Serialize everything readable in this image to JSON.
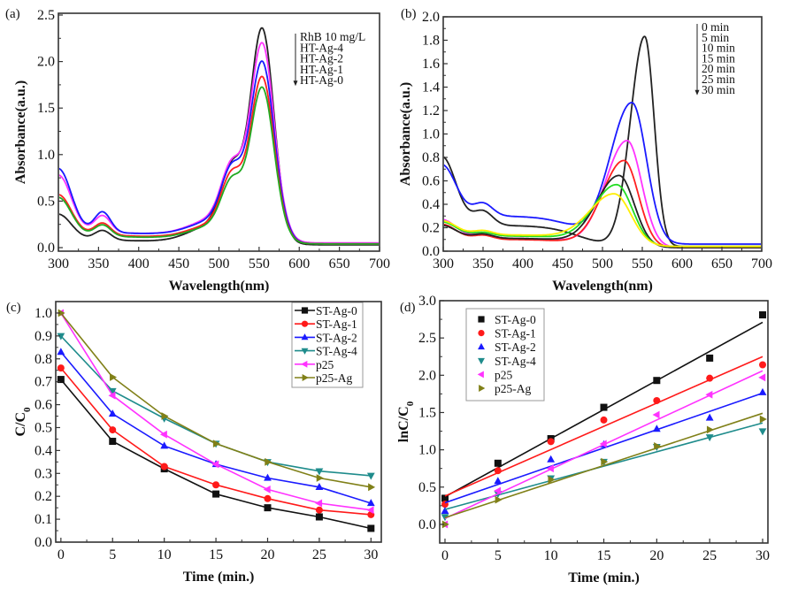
{
  "chart_data": [
    {
      "id": "a",
      "type": "line",
      "panel_label": "(a)",
      "title": "",
      "xlabel": "Wavelength(nm)",
      "ylabel": "Absorbance(a.u.)",
      "xlim": [
        300,
        700
      ],
      "ylim": [
        0,
        2.5
      ],
      "xticks": [
        300,
        350,
        400,
        450,
        500,
        550,
        600,
        650,
        700
      ],
      "yticks": [
        0.0,
        0.5,
        1.0,
        1.5,
        2.0,
        2.5
      ],
      "ytick_labels": [
        "0.0",
        "0.5",
        "1.0",
        "1.5",
        "2.0",
        "2.5"
      ],
      "grid": false,
      "legend": {
        "placement": "top-right",
        "style": "arrow-list",
        "entries": [
          "RhB 10 mg/L",
          "HT-Ag-4",
          "HT-Ag-2",
          "HT-Ag-1",
          "HT-Ag-0"
        ]
      },
      "series": [
        {
          "name": "RhB 10 mg/L",
          "color": "#222222",
          "peak": 2.21,
          "shoulder": 0.8,
          "uv305": 0.32,
          "uv355": 0.2,
          "trough450": 0.06,
          "tail": 0.03
        },
        {
          "name": "HT-Ag-4",
          "color": "#ff33ff",
          "peak": 1.98,
          "shoulder": 0.75,
          "uv305": 0.74,
          "uv355": 0.36,
          "trough450": 0.14,
          "tail": 0.05
        },
        {
          "name": "HT-Ag-2",
          "color": "#1a1aff",
          "peak": 1.79,
          "shoulder": 0.72,
          "uv305": 0.81,
          "uv355": 0.4,
          "trough450": 0.14,
          "tail": 0.04
        },
        {
          "name": "HT-Ag-1",
          "color": "#ff2020",
          "peak": 1.66,
          "shoulder": 0.68,
          "uv305": 0.53,
          "uv355": 0.28,
          "trough450": 0.11,
          "tail": 0.04
        },
        {
          "name": "HT-Ag-0",
          "color": "#22aa22",
          "peak": 1.56,
          "shoulder": 0.62,
          "uv305": 0.5,
          "uv355": 0.26,
          "trough450": 0.1,
          "tail": 0.04
        }
      ]
    },
    {
      "id": "b",
      "type": "line",
      "panel_label": "(b)",
      "title": "",
      "xlabel": "Wavelength(nm)",
      "ylabel": "Absorbance(a.u.)",
      "xlim": [
        300,
        700
      ],
      "ylim": [
        0,
        2.0
      ],
      "xticks": [
        300,
        350,
        400,
        450,
        500,
        550,
        600,
        650,
        700
      ],
      "yticks": [
        0.0,
        0.2,
        0.4,
        0.6,
        0.8,
        1.0,
        1.2,
        1.4,
        1.6,
        1.8,
        2.0
      ],
      "ytick_labels": [
        "0.0",
        "0.2",
        "0.4",
        "0.6",
        "0.8",
        "1.0",
        "1.2",
        "1.4",
        "1.6",
        "1.8",
        "2.0"
      ],
      "grid": false,
      "legend": {
        "placement": "top-right",
        "style": "arrow-list",
        "entries": [
          "0 min",
          "5 min",
          "10 min",
          "15 min",
          "20 min",
          "25 min",
          "30 min"
        ]
      },
      "series": [
        {
          "name": "0 min",
          "color": "#222222",
          "peak_x": 553,
          "peak": 1.79,
          "width": 17,
          "uv305": 0.81,
          "uv355": 0.42,
          "base400": 0.22,
          "tail": 0.04
        },
        {
          "name": "5 min",
          "color": "#1a1aff",
          "peak_x": 537,
          "peak": 1.2,
          "width": 26,
          "uv305": 0.74,
          "uv355": 0.48,
          "base400": 0.3,
          "tail": 0.06
        },
        {
          "name": "10 min",
          "color": "#ff33ff",
          "peak_x": 531,
          "peak": 0.91,
          "width": 26,
          "uv305": 0.27,
          "uv355": 0.17,
          "base400": 0.11,
          "tail": 0.03
        },
        {
          "name": "15 min",
          "color": "#ff2020",
          "peak_x": 527,
          "peak": 0.74,
          "width": 26,
          "uv305": 0.23,
          "uv355": 0.16,
          "base400": 0.1,
          "tail": 0.03
        },
        {
          "name": "20 min",
          "color": "#222222",
          "peak_x": 521,
          "peak": 0.61,
          "width": 27,
          "uv305": 0.22,
          "uv355": 0.17,
          "base400": 0.11,
          "tail": 0.03
        },
        {
          "name": "25 min",
          "color": "#22dd22",
          "peak_x": 518,
          "peak": 0.52,
          "width": 28,
          "uv305": 0.25,
          "uv355": 0.18,
          "base400": 0.13,
          "tail": 0.04
        },
        {
          "name": "30 min",
          "color": "#ffee00",
          "peak_x": 515,
          "peak": 0.44,
          "width": 30,
          "uv305": 0.26,
          "uv355": 0.2,
          "base400": 0.14,
          "tail": 0.04
        }
      ]
    },
    {
      "id": "c",
      "type": "line",
      "panel_label": "(c)",
      "title": "",
      "xlabel": "Time (min.)",
      "ylabel": "C/C0",
      "ylabel_main": "C/C",
      "ylabel_sub": "0",
      "xlim": [
        -0.5,
        31
      ],
      "ylim": [
        0,
        1.05
      ],
      "xticks": [
        0,
        5,
        10,
        15,
        20,
        25,
        30
      ],
      "yticks": [
        0.0,
        0.1,
        0.2,
        0.3,
        0.4,
        0.5,
        0.6,
        0.7,
        0.8,
        0.9,
        1.0
      ],
      "ytick_labels": [
        "0.0",
        "0.1",
        "0.2",
        "0.3",
        "0.4",
        "0.5",
        "0.6",
        "0.7",
        "0.8",
        "0.9",
        "1.0"
      ],
      "grid": false,
      "legend": {
        "placement": "top-right"
      },
      "x": [
        0,
        5,
        10,
        15,
        20,
        25,
        30
      ],
      "series": [
        {
          "name": "ST-Ag-0",
          "color": "#111111",
          "marker": "square",
          "values": [
            0.71,
            0.44,
            0.32,
            0.21,
            0.15,
            0.11,
            0.06
          ]
        },
        {
          "name": "ST-Ag-1",
          "color": "#ff1a1a",
          "marker": "circle",
          "values": [
            0.76,
            0.49,
            0.33,
            0.25,
            0.19,
            0.14,
            0.12
          ]
        },
        {
          "name": "ST-Ag-2",
          "color": "#1a1aff",
          "marker": "triangle-up",
          "values": [
            0.83,
            0.56,
            0.42,
            0.34,
            0.28,
            0.24,
            0.17
          ]
        },
        {
          "name": "ST-Ag-4",
          "color": "#1f8c8c",
          "marker": "triangle-down",
          "values": [
            0.9,
            0.66,
            0.54,
            0.43,
            0.35,
            0.31,
            0.29
          ]
        },
        {
          "name": "p25",
          "color": "#ff33ff",
          "marker": "triangle-left",
          "values": [
            1.0,
            0.64,
            0.47,
            0.34,
            0.23,
            0.17,
            0.14
          ]
        },
        {
          "name": "p25-Ag",
          "color": "#808018",
          "marker": "triangle-right",
          "values": [
            1.0,
            0.72,
            0.55,
            0.43,
            0.35,
            0.28,
            0.24
          ]
        }
      ]
    },
    {
      "id": "d",
      "type": "scatter",
      "panel_label": "(d)",
      "title": "",
      "xlabel": "Time (min.)",
      "ylabel": "lnC/C0",
      "ylabel_main": "lnC/C",
      "ylabel_sub": "0",
      "xlim": [
        -0.5,
        30.5
      ],
      "ylim": [
        -0.25,
        3.0
      ],
      "xticks": [
        0,
        5,
        10,
        15,
        20,
        25,
        30
      ],
      "yticks": [
        0.0,
        0.5,
        1.0,
        1.5,
        2.0,
        2.5,
        3.0
      ],
      "ytick_labels": [
        "0.0",
        "0.5",
        "1.0",
        "1.5",
        "2.0",
        "2.5",
        "3.0"
      ],
      "grid": false,
      "legend": {
        "placement": "top-left"
      },
      "x": [
        0,
        5,
        10,
        15,
        20,
        25,
        30
      ],
      "series": [
        {
          "name": "ST-Ag-0",
          "color": "#111111",
          "marker": "square",
          "values": [
            0.35,
            0.82,
            1.15,
            1.57,
            1.93,
            2.23,
            2.81
          ],
          "fit": [
            0.37,
            2.71
          ]
        },
        {
          "name": "ST-Ag-1",
          "color": "#ff1a1a",
          "marker": "circle",
          "values": [
            0.27,
            0.72,
            1.11,
            1.4,
            1.66,
            1.96,
            2.14
          ],
          "fit": [
            0.38,
            2.25
          ]
        },
        {
          "name": "ST-Ag-2",
          "color": "#1a1aff",
          "marker": "triangle-up",
          "values": [
            0.18,
            0.58,
            0.87,
            1.07,
            1.28,
            1.43,
            1.77
          ],
          "fit": [
            0.29,
            1.76
          ]
        },
        {
          "name": "ST-Ag-4",
          "color": "#1f8c8c",
          "marker": "triangle-down",
          "values": [
            0.1,
            0.41,
            0.62,
            0.84,
            1.04,
            1.17,
            1.25
          ],
          "fit": [
            0.2,
            1.36
          ]
        },
        {
          "name": "p25",
          "color": "#ff33ff",
          "marker": "triangle-left",
          "values": [
            0.0,
            0.45,
            0.75,
            1.08,
            1.47,
            1.74,
            1.97
          ],
          "fit": [
            0.08,
            2.06
          ]
        },
        {
          "name": "p25-Ag",
          "color": "#808018",
          "marker": "triangle-right",
          "values": [
            0.0,
            0.33,
            0.6,
            0.84,
            1.05,
            1.27,
            1.41
          ],
          "fit": [
            0.09,
            1.49
          ]
        }
      ]
    }
  ]
}
